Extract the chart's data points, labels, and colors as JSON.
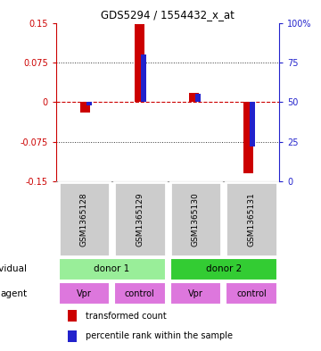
{
  "title": "GDS5294 / 1554432_x_at",
  "samples": [
    "GSM1365128",
    "GSM1365129",
    "GSM1365130",
    "GSM1365131"
  ],
  "transformed_counts": [
    -0.02,
    0.148,
    0.018,
    -0.135
  ],
  "percentile_ranks": [
    48,
    80,
    55,
    22
  ],
  "ylim_left": [
    -0.15,
    0.15
  ],
  "ylim_right": [
    0,
    100
  ],
  "yticks_left": [
    -0.15,
    -0.075,
    0,
    0.075,
    0.15
  ],
  "yticks_right": [
    0,
    25,
    50,
    75,
    100
  ],
  "ytick_labels_left": [
    "-0.15",
    "-0.075",
    "0",
    "0.075",
    "0.15"
  ],
  "ytick_labels_right": [
    "0",
    "25",
    "50",
    "75",
    "100%"
  ],
  "bar_color_red": "#cc0000",
  "bar_color_blue": "#2222cc",
  "red_bar_width": 0.18,
  "blue_bar_width": 0.1,
  "donor_row": [
    {
      "label": "donor 1",
      "span": [
        0,
        2
      ],
      "color": "#99ee99"
    },
    {
      "label": "donor 2",
      "span": [
        2,
        4
      ],
      "color": "#33cc33"
    }
  ],
  "agent_row": [
    {
      "label": "Vpr",
      "span": [
        0,
        1
      ],
      "color": "#dd77dd"
    },
    {
      "label": "control",
      "span": [
        1,
        2
      ],
      "color": "#dd77dd"
    },
    {
      "label": "Vpr",
      "span": [
        2,
        3
      ],
      "color": "#dd77dd"
    },
    {
      "label": "control",
      "span": [
        3,
        4
      ],
      "color": "#dd77dd"
    }
  ],
  "sample_box_color": "#cccccc",
  "individual_label": "individual",
  "agent_label": "agent",
  "legend_red_label": "transformed count",
  "legend_blue_label": "percentile rank within the sample",
  "left_axis_color": "#cc0000",
  "right_axis_color": "#2222cc",
  "zero_line_color": "#cc0000",
  "dotted_line_color": "#333333",
  "background_color": "#ffffff"
}
